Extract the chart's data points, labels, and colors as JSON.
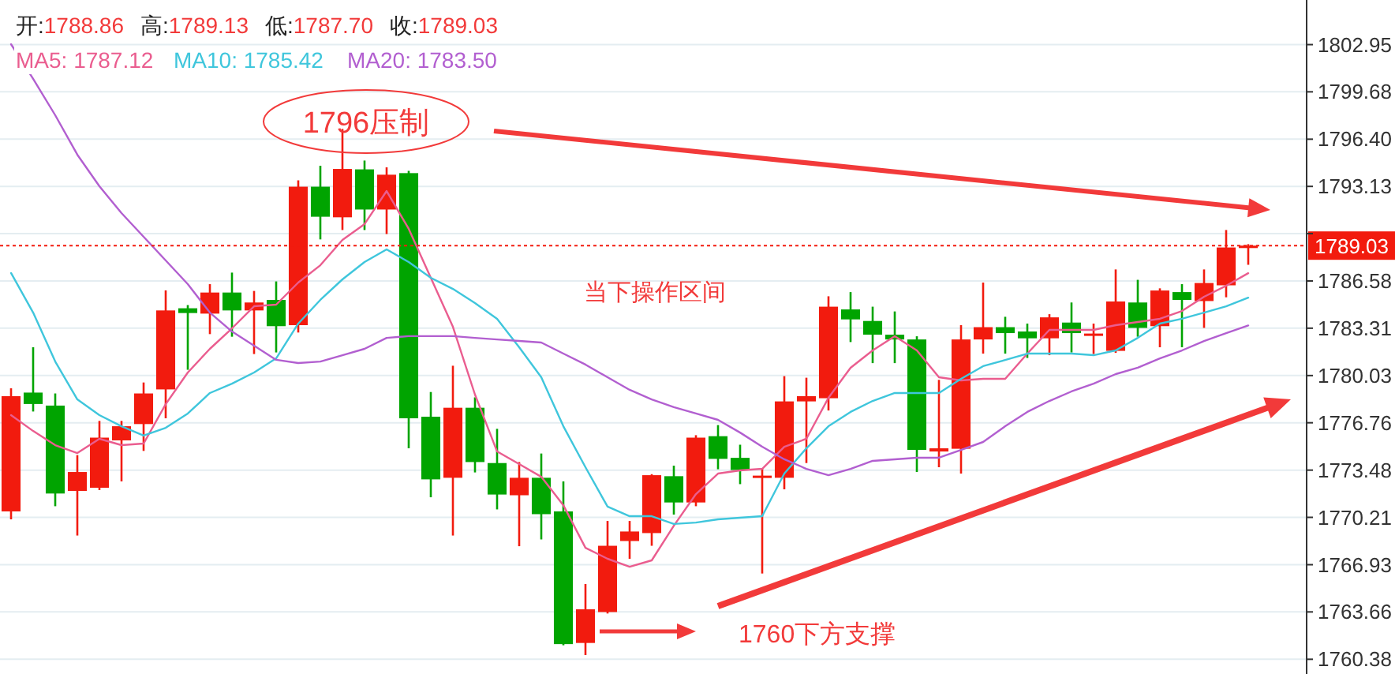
{
  "chart_data": {
    "type": "candlestick",
    "categories": [
      null,
      null,
      null,
      null,
      null,
      null,
      null,
      null,
      null,
      null,
      null,
      null,
      null,
      null,
      null,
      null,
      null,
      null,
      null,
      null,
      null,
      null,
      null,
      null,
      null,
      null,
      null,
      null,
      null,
      null,
      null,
      null,
      null,
      null,
      null,
      null,
      null,
      null,
      null,
      null,
      null,
      null,
      null,
      null,
      null,
      null,
      null,
      null,
      null,
      null,
      null,
      null,
      null,
      null,
      null,
      null,
      null
    ],
    "ohlc": [
      [
        1770.62,
        1779.15,
        1770.07,
        1778.6
      ],
      [
        1778.85,
        1781.99,
        1777.54,
        1778.06
      ],
      [
        1777.95,
        1778.79,
        1770.98,
        1771.86
      ],
      [
        1772.04,
        1774.52,
        1768.95,
        1773.35
      ],
      [
        1772.26,
        1776.89,
        1772.1,
        1775.73
      ],
      [
        1775.54,
        1776.89,
        1772.7,
        1776.52
      ],
      [
        1776.67,
        1779.55,
        1774.81,
        1778.79
      ],
      [
        1779.07,
        1785.93,
        1777.07,
        1784.54
      ],
      [
        1784.69,
        1784.91,
        1780.43,
        1784.36
      ],
      [
        1784.32,
        1786.36,
        1782.9,
        1785.78
      ],
      [
        1785.78,
        1787.16,
        1782.72,
        1784.54
      ],
      [
        1784.54,
        1785.89,
        1781.52,
        1785.09
      ],
      [
        1785.27,
        1786.55,
        1781.63,
        1783.45
      ],
      [
        1783.52,
        1793.55,
        1783.01,
        1793.11
      ],
      [
        1793.11,
        1794.56,
        1789.46,
        1791.03
      ],
      [
        1790.99,
        1797.11,
        1790.11,
        1794.34
      ],
      [
        1794.31,
        1794.92,
        1790.11,
        1791.53
      ],
      [
        1791.53,
        1794.45,
        1789.83,
        1793.94
      ],
      [
        1794.05,
        1794.2,
        1774.99,
        1777.07
      ],
      [
        1777.18,
        1778.89,
        1771.6,
        1772.84
      ],
      [
        1772.95,
        1780.71,
        1768.95,
        1777.8
      ],
      [
        1777.8,
        1778.52,
        1773.32,
        1774.04
      ],
      [
        1773.97,
        1776.34,
        1770.76,
        1771.79
      ],
      [
        1771.74,
        1774.04,
        1768.21,
        1772.95
      ],
      [
        1772.95,
        1774.63,
        1768.68,
        1770.43
      ],
      [
        1770.62,
        1772.7,
        1761.35,
        1761.43
      ],
      [
        1761.51,
        1765.59,
        1760.67,
        1763.84
      ],
      [
        1763.65,
        1769.96,
        1763.55,
        1768.24
      ],
      [
        1768.57,
        1769.96,
        1767.34,
        1769.23
      ],
      [
        1769.12,
        1773.2,
        1768.24,
        1773.13
      ],
      [
        1773.06,
        1773.79,
        1770.4,
        1771.24
      ],
      [
        1771.24,
        1775.9,
        1770.98,
        1775.73
      ],
      [
        1775.83,
        1776.6,
        1773.54,
        1774.26
      ],
      [
        1774.33,
        1775.24,
        1772.51,
        1773.49
      ],
      [
        1772.95,
        1773.6,
        1766.32,
        1773.1
      ],
      [
        1772.95,
        1779.99,
        1772.15,
        1778.24
      ],
      [
        1778.24,
        1779.88,
        1773.97,
        1778.6
      ],
      [
        1778.46,
        1785.52,
        1777.61,
        1784.8
      ],
      [
        1784.61,
        1785.81,
        1782.35,
        1783.92
      ],
      [
        1783.81,
        1784.8,
        1780.89,
        1782.86
      ],
      [
        1782.86,
        1784.47,
        1780.89,
        1782.53
      ],
      [
        1782.53,
        1782.75,
        1773.35,
        1774.88
      ],
      [
        1774.77,
        1779.73,
        1773.68,
        1774.99
      ],
      [
        1774.96,
        1783.52,
        1773.24,
        1782.53
      ],
      [
        1782.53,
        1786.47,
        1781.55,
        1783.38
      ],
      [
        1783.38,
        1784.1,
        1781.55,
        1782.97
      ],
      [
        1783.08,
        1783.63,
        1781.25,
        1782.61
      ],
      [
        1782.61,
        1784.28,
        1781.44,
        1784.06
      ],
      [
        1783.7,
        1785.09,
        1781.63,
        1782.97
      ],
      [
        1782.83,
        1783.63,
        1781.52,
        1782.94
      ],
      [
        1781.74,
        1787.38,
        1781.6,
        1785.16
      ],
      [
        1785.09,
        1786.66,
        1782.72,
        1783.33
      ],
      [
        1783.45,
        1786.07,
        1781.99,
        1785.92
      ],
      [
        1785.81,
        1786.36,
        1781.99,
        1785.27
      ],
      [
        1785.19,
        1787.38,
        1783.33,
        1786.44
      ],
      [
        1786.28,
        1790.11,
        1785.45,
        1788.9
      ],
      [
        1788.86,
        1789.13,
        1787.7,
        1789.03
      ]
    ],
    "colors": [
      "#f21b0e",
      "#00a400",
      "#00a400",
      "#f21b0e",
      "#f21b0e",
      "#f21b0e",
      "#f21b0e",
      "#f21b0e",
      "#00a400",
      "#f21b0e",
      "#00a400",
      "#f21b0e",
      "#00a400",
      "#f21b0e",
      "#00a400",
      "#f21b0e",
      "#00a400",
      "#f21b0e",
      "#00a400",
      "#00a400",
      "#f21b0e",
      "#00a400",
      "#00a400",
      "#f21b0e",
      "#00a400",
      "#00a400",
      "#f21b0e",
      "#f21b0e",
      "#f21b0e",
      "#f21b0e",
      "#00a400",
      "#f21b0e",
      "#00a400",
      "#00a400",
      "#f21b0e",
      "#f21b0e",
      "#f21b0e",
      "#f21b0e",
      "#00a400",
      "#00a400",
      "#00a400",
      "#00a400",
      "#f21b0e",
      "#f21b0e",
      "#f21b0e",
      "#00a400",
      "#00a400",
      "#f21b0e",
      "#00a400",
      "#f21b0e",
      "#f21b0e",
      "#00a400",
      "#f21b0e",
      "#00a400",
      "#f21b0e",
      "#f21b0e",
      "#f21b0e"
    ],
    "series": [
      {
        "name": "MA5: 1787.12",
        "type": "line",
        "color": "#ea5d8f",
        "values": [
          1777.29,
          1776.19,
          1775.21,
          1774.66,
          1775.65,
          1775.21,
          1775.32,
          1778.05,
          1780.24,
          1781.88,
          1783.3,
          1784.83,
          1784.94,
          1786.47,
          1787.67,
          1789.42,
          1790.52,
          1792.81,
          1790.19,
          1786.8,
          1783.41,
          1778.71,
          1774.77,
          1773.9,
          1773.02,
          1771.05,
          1768.1,
          1767.34,
          1766.79,
          1767.23,
          1769.63,
          1771.82,
          1773.24,
          1773.46,
          1773.57,
          1775.1,
          1775.65,
          1778.49,
          1780.57,
          1781.77,
          1782.75,
          1781.77,
          1779.91,
          1779.69,
          1779.8,
          1779.8,
          1781.55,
          1783.19,
          1783.19,
          1783.19,
          1783.52,
          1783.74,
          1783.96,
          1784.5,
          1785.49,
          1786.25,
          1787.12
        ]
      },
      {
        "name": "MA10: 1785.42",
        "type": "line",
        "color": "#3fc6dc",
        "values": [
          1787.13,
          1784.39,
          1781.0,
          1778.38,
          1777.29,
          1776.52,
          1775.87,
          1776.41,
          1777.4,
          1778.82,
          1779.47,
          1780.24,
          1781.22,
          1783.63,
          1785.27,
          1786.69,
          1787.89,
          1788.77,
          1787.89,
          1786.8,
          1786.03,
          1785.05,
          1783.96,
          1781.99,
          1779.91,
          1776.52,
          1773.68,
          1770.95,
          1770.29,
          1770.29,
          1769.75,
          1769.85,
          1770.07,
          1770.18,
          1770.29,
          1773.24,
          1774.99,
          1776.52,
          1777.51,
          1778.27,
          1778.82,
          1778.82,
          1778.82,
          1779.8,
          1780.68,
          1781.11,
          1781.55,
          1781.55,
          1781.55,
          1781.44,
          1781.77,
          1782.64,
          1783.63,
          1783.96,
          1784.39,
          1784.83,
          1785.42
        ]
      },
      {
        "name": "MA20: 1783.50",
        "type": "line",
        "color": "#b25fd0",
        "values": [
          1802.98,
          1800.58,
          1798.06,
          1795.33,
          1793.14,
          1791.28,
          1789.64,
          1788.0,
          1786.36,
          1784.39,
          1783.08,
          1782.1,
          1781.12,
          1780.9,
          1781.0,
          1781.44,
          1781.88,
          1782.64,
          1782.76,
          1782.76,
          1782.76,
          1782.64,
          1782.53,
          1782.43,
          1782.32,
          1781.55,
          1780.79,
          1779.91,
          1779.04,
          1778.38,
          1777.84,
          1777.4,
          1776.96,
          1776.08,
          1775.1,
          1774.23,
          1773.57,
          1773.13,
          1773.57,
          1774.12,
          1774.23,
          1774.34,
          1774.34,
          1774.88,
          1775.43,
          1776.52,
          1777.51,
          1778.27,
          1778.93,
          1779.47,
          1780.13,
          1780.57,
          1781.22,
          1781.77,
          1782.42,
          1782.97,
          1783.5
        ]
      }
    ],
    "ylim": [
      1759.36,
      1806.04
    ],
    "yticks": [
      1760.38,
      1763.66,
      1766.93,
      1770.21,
      1773.48,
      1776.76,
      1780.03,
      1783.31,
      1786.58,
      {
        "value": 1789.86,
        "label": null
      },
      1793.13,
      {
        "value": 1796.4,
        "label": "1796.40"
      },
      1799.68,
      1802.95
    ],
    "ref_lines": [
      {
        "axis": "y",
        "value": 1789.03,
        "label": "1789.03",
        "color": "#f21b0e",
        "line_style": "dotted"
      }
    ],
    "annotations": [
      "开:1788.86",
      "高:1789.13",
      "低:1787.70",
      "收:1789.03",
      "1796压制",
      "当下操作区间",
      "1760下方支撑"
    ],
    "grid": "y",
    "legend": "top"
  }
}
